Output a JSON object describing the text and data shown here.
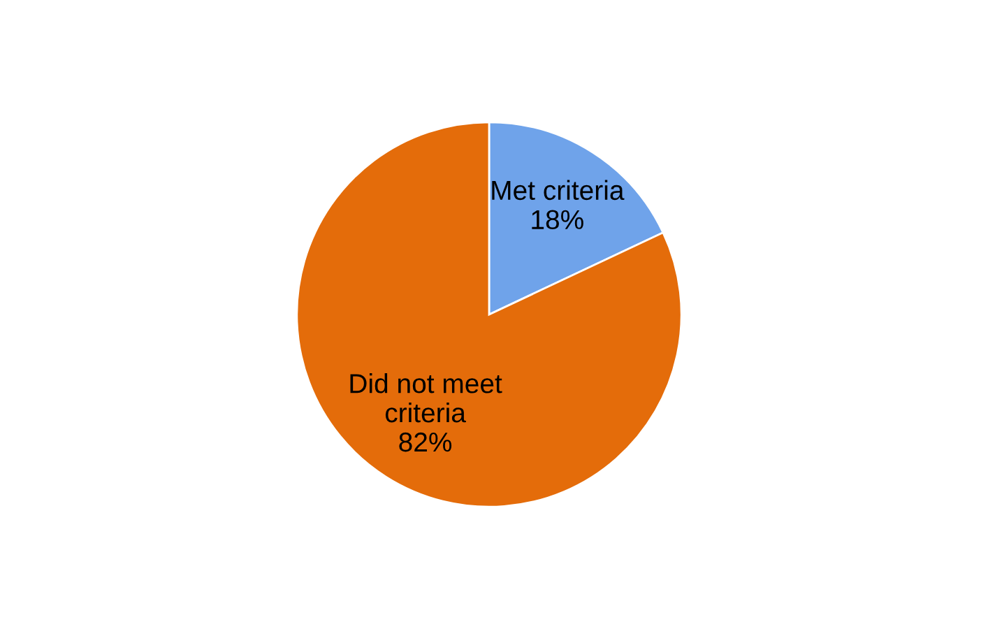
{
  "chart_data": {
    "type": "pie",
    "categories": [
      "Met criteria",
      "Did not meet criteria"
    ],
    "values": [
      18,
      82
    ],
    "colors": [
      "#6fa3ea",
      "#e46c0a"
    ],
    "value_labels": [
      "18%",
      "82%"
    ],
    "legend": false
  }
}
